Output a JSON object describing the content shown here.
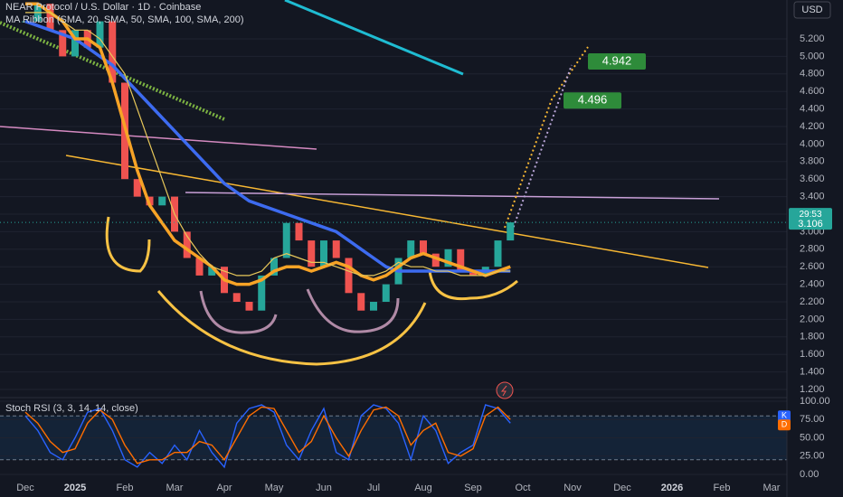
{
  "chart_data": [
    {
      "type": "candlestick",
      "title": "NEAR Protocol / U.S. Dollar · 1D · Coinbase",
      "subtitle": "MA Ribbon (SMA, 20, SMA, 50, SMA, 100, SMA, 200)",
      "currency": "USD",
      "countdown": "29:53",
      "last_price": 3.106,
      "targets": [
        4.496,
        4.942
      ],
      "categories": [
        "Dec",
        null,
        null,
        null,
        "2025",
        null,
        null,
        null,
        "Feb",
        null,
        null,
        null,
        "Mar",
        null,
        null,
        null,
        "Apr",
        null,
        null,
        null,
        "May",
        null,
        null,
        null,
        "Jun",
        null,
        null,
        null,
        "Jul",
        null,
        null,
        null,
        "Aug",
        null,
        null,
        null,
        "Sep",
        null,
        null,
        null,
        "Oct",
        null,
        null,
        null,
        "Nov",
        null,
        null,
        null,
        "Dec",
        null,
        null,
        null,
        "2026",
        null,
        null,
        null,
        "Feb",
        null,
        null,
        null,
        "Mar",
        null,
        null,
        null
      ],
      "values": [
        5.4,
        5.6,
        5.3,
        5.0,
        5.3,
        5.1,
        5.4,
        4.7,
        3.6,
        3.4,
        3.3,
        3.4,
        3.0,
        2.7,
        2.5,
        2.6,
        2.3,
        2.2,
        2.1,
        2.5,
        2.7,
        3.1,
        2.9,
        2.6,
        2.9,
        2.7,
        2.3,
        2.1,
        2.2,
        2.4,
        2.7,
        2.9,
        2.75,
        2.6,
        2.8,
        2.55,
        2.5,
        2.6,
        2.9,
        3.106,
        null,
        null,
        null,
        null,
        null,
        null,
        null,
        null,
        null,
        null,
        null,
        null,
        null,
        null,
        null,
        null,
        null,
        null,
        null,
        null,
        null,
        null,
        null,
        null
      ],
      "up_color": "#26a69a",
      "down_color": "#ef5350",
      "series": [
        {
          "color": "#3d6bf0",
          "values": [
            5.4,
            5.35,
            5.3,
            5.25,
            5.2,
            5.1,
            5.0,
            4.9,
            4.75,
            4.6,
            4.45,
            4.3,
            4.15,
            4.0,
            3.85,
            3.7,
            3.55,
            3.45,
            3.35,
            3.3,
            3.25,
            3.2,
            3.15,
            3.1,
            3.05,
            3.0,
            2.9,
            2.8,
            2.7,
            2.6,
            2.55,
            2.55,
            2.55,
            2.55,
            2.55,
            2.55,
            2.55,
            2.55,
            2.55,
            2.55,
            null,
            null,
            null,
            null,
            null,
            null,
            null,
            null,
            null,
            null,
            null,
            null,
            null,
            null,
            null,
            null,
            null,
            null,
            null,
            null,
            null,
            null,
            null,
            null
          ]
        },
        {
          "color": "#f7a326",
          "values": [
            5.6,
            5.6,
            5.5,
            5.4,
            5.2,
            5.2,
            5.1,
            4.7,
            4.2,
            3.7,
            3.3,
            3.1,
            2.9,
            2.8,
            2.7,
            2.6,
            2.45,
            2.4,
            2.4,
            2.45,
            2.55,
            2.6,
            2.6,
            2.55,
            2.6,
            2.65,
            2.6,
            2.5,
            2.45,
            2.5,
            2.6,
            2.7,
            2.75,
            2.7,
            2.65,
            2.6,
            2.55,
            2.5,
            2.55,
            2.6,
            null,
            null,
            null,
            null,
            null,
            null,
            null,
            null,
            null,
            null,
            null,
            null,
            null,
            null,
            null,
            null,
            null,
            null,
            null,
            null,
            null,
            null,
            null,
            null
          ]
        },
        {
          "color": "#e8c85a",
          "values": [
            5.5,
            5.5,
            5.5,
            5.4,
            5.3,
            5.3,
            5.2,
            5.0,
            4.8,
            4.4,
            4.0,
            3.6,
            3.2,
            2.95,
            2.75,
            2.6,
            2.55,
            2.5,
            2.5,
            2.55,
            2.7,
            2.75,
            2.7,
            2.65,
            2.65,
            2.6,
            2.55,
            2.5,
            2.5,
            2.55,
            2.65,
            2.6,
            2.6,
            2.55,
            2.55,
            2.5,
            2.5,
            2.5,
            2.55,
            2.55,
            null,
            null,
            null,
            null,
            null,
            null,
            null,
            null,
            null,
            null,
            null,
            null,
            null,
            null,
            null,
            null,
            null,
            null,
            null,
            null,
            null,
            null,
            null,
            null
          ]
        }
      ],
      "ylim": [
        1.1,
        5.6
      ],
      "yticks": [
        {
          "value": 1.2,
          "label": "1.200"
        },
        {
          "value": 1.4,
          "label": "1.400"
        },
        {
          "value": 1.6,
          "label": "1.600"
        },
        {
          "value": 1.8,
          "label": "1.800"
        },
        {
          "value": 2.0,
          "label": "2.000"
        },
        {
          "value": 2.2,
          "label": "2.200"
        },
        {
          "value": 2.4,
          "label": "2.400"
        },
        {
          "value": 2.6,
          "label": "2.600"
        },
        {
          "value": 2.8,
          "label": "2.800"
        },
        {
          "value": 3.0,
          "label": "3.000"
        },
        {
          "value": 3.2,
          "label": "3.200"
        },
        {
          "value": 3.4,
          "label": "3.400"
        },
        {
          "value": 3.6,
          "label": "3.600"
        },
        {
          "value": 3.8,
          "label": "3.800"
        },
        {
          "value": 4.0,
          "label": "4.000"
        },
        {
          "value": 4.2,
          "label": "4.200"
        },
        {
          "value": 4.4,
          "label": "4.400"
        },
        {
          "value": 4.6,
          "label": "4.600"
        },
        {
          "value": 4.8,
          "label": "4.800"
        },
        {
          "value": 5.0,
          "label": "5.000"
        },
        {
          "value": 5.2,
          "label": "5.200"
        }
      ],
      "grid": true
    },
    {
      "type": "line",
      "title": "Stoch RSI (3, 3, 14, 14, close)",
      "series": [
        {
          "name": "K",
          "color": "#2962ff",
          "values": [
            80,
            60,
            30,
            20,
            50,
            85,
            90,
            60,
            20,
            10,
            30,
            15,
            40,
            20,
            60,
            30,
            10,
            70,
            90,
            95,
            85,
            40,
            20,
            60,
            90,
            30,
            20,
            80,
            95,
            90,
            70,
            20,
            80,
            60,
            15,
            30,
            40,
            95,
            90,
            70
          ]
        },
        {
          "name": "D",
          "color": "#ff6d00",
          "values": [
            85,
            70,
            45,
            30,
            35,
            70,
            88,
            75,
            40,
            15,
            20,
            20,
            30,
            30,
            45,
            40,
            20,
            50,
            80,
            92,
            90,
            60,
            30,
            45,
            80,
            50,
            25,
            60,
            88,
            92,
            80,
            40,
            60,
            70,
            30,
            25,
            35,
            80,
            92,
            75
          ]
        }
      ],
      "band": [
        20,
        80
      ],
      "ylim": [
        0,
        100
      ],
      "yticks": [
        {
          "value": 0,
          "label": "0.00"
        },
        {
          "value": 25,
          "label": "25.00"
        },
        {
          "value": 50,
          "label": "50.00"
        },
        {
          "value": 75,
          "label": "75.00"
        },
        {
          "value": 100,
          "label": "100.00"
        }
      ],
      "grid": true
    }
  ]
}
